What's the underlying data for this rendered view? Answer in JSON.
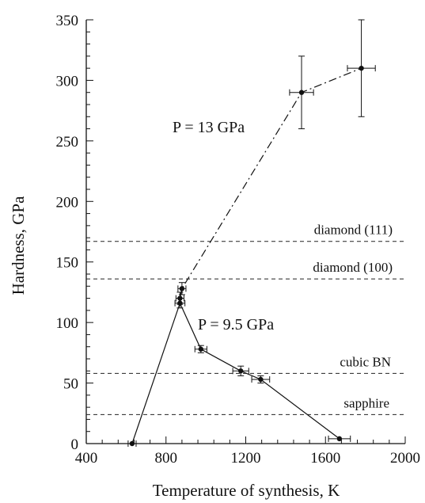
{
  "chart_data": {
    "type": "line",
    "title": "",
    "xlabel": "Temperature of synthesis, K",
    "ylabel": "Hardness, GPa",
    "xlim": [
      400,
      2000
    ],
    "ylim": [
      0,
      350
    ],
    "x_ticks": [
      400,
      800,
      1200,
      1600,
      2000
    ],
    "y_ticks": [
      0,
      50,
      100,
      150,
      200,
      250,
      300,
      350
    ],
    "grid": false,
    "legend": "none",
    "series": [
      {
        "label": "P = 9.5 GPa",
        "style": "solid",
        "points": [
          {
            "x": 630,
            "y": 0,
            "xerr": 20,
            "yerr": 0
          },
          {
            "x": 870,
            "y": 116,
            "xerr": 25,
            "yerr": 4
          },
          {
            "x": 975,
            "y": 78,
            "xerr": 30,
            "yerr": 3
          },
          {
            "x": 1175,
            "y": 60,
            "xerr": 40,
            "yerr": 4
          },
          {
            "x": 1275,
            "y": 53,
            "xerr": 45,
            "yerr": 3
          },
          {
            "x": 1670,
            "y": 4,
            "xerr": 55,
            "yerr": 0
          }
        ]
      },
      {
        "label": "P = 13 GPa",
        "style": "dash-dot",
        "points": [
          {
            "x": 870,
            "y": 120,
            "xerr": 20,
            "yerr": 5
          },
          {
            "x": 880,
            "y": 128,
            "xerr": 20,
            "yerr": 5
          },
          {
            "x": 1480,
            "y": 290,
            "xerr": 60,
            "yerr": 30
          },
          {
            "x": 1780,
            "y": 310,
            "xerr": 70,
            "yerr": 40
          }
        ]
      }
    ],
    "reference_lines": [
      {
        "label": "diamond (111)",
        "y": 167
      },
      {
        "label": "diamond (100)",
        "y": 136
      },
      {
        "label": "cubic BN",
        "y": 58
      },
      {
        "label": "sapphire",
        "y": 24
      }
    ]
  }
}
